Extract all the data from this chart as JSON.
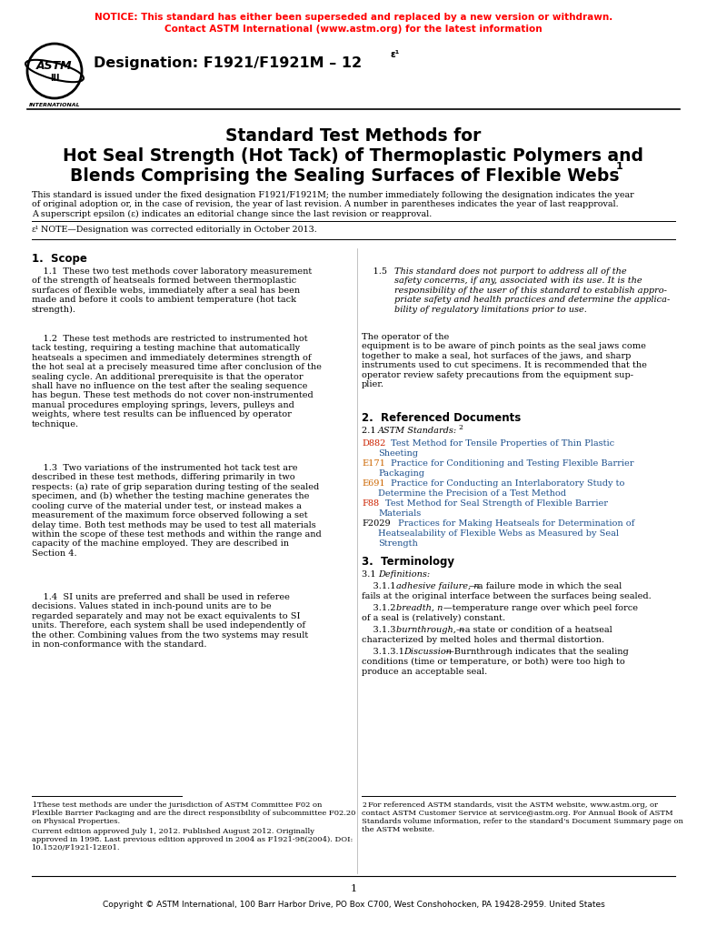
{
  "notice_line1": "NOTICE: This standard has either been superseded and replaced by a new version or withdrawn.",
  "notice_line2": "Contact ASTM International (www.astm.org) for the latest information",
  "notice_color": "#FF0000",
  "background_color": "#FFFFFF",
  "footer_text": "Copyright © ASTM International, 100 Barr Harbor Drive, PO Box C700, West Conshohocken, PA 19428-2959. United States",
  "col1_refs": [
    {
      "code": "D882",
      "code_color": "#CC2200",
      "text": "Test Method for Tensile Properties of Thin Plastic\n    Sheeting",
      "text_color": "#1A4E8C"
    },
    {
      "code": "E171",
      "code_color": "#CC6600",
      "text": "Practice for Conditioning and Testing Flexible Barrier\n    Packaging",
      "text_color": "#1A4E8C"
    },
    {
      "code": "E691",
      "code_color": "#CC6600",
      "text": "Practice for Conducting an Interlaboratory Study to\n    Determine the Precision of a Test Method",
      "text_color": "#1A4E8C"
    },
    {
      "code": "F88",
      "code_color": "#CC2200",
      "text": "Test Method for Seal Strength of Flexible Barrier\n    Materials",
      "text_color": "#1A4E8C"
    },
    {
      "code": "F2029",
      "code_color": "#000000",
      "text": "Practices for Making Heatseals for Determination of\n    Heatsealability of Flexible Webs as Measured by Seal\n    Strength",
      "text_color": "#1A4E8C"
    }
  ]
}
